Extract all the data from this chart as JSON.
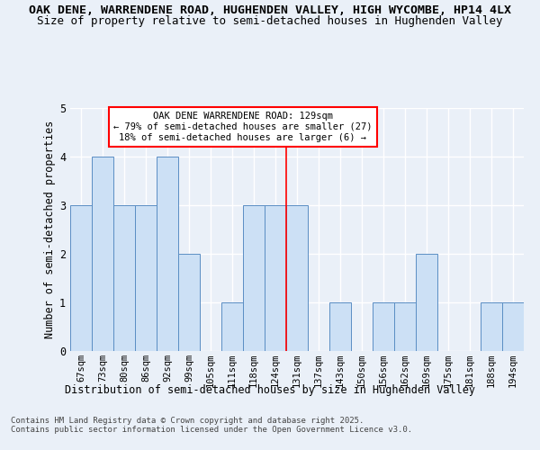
{
  "title_line1": "OAK DENE, WARRENDENE ROAD, HUGHENDEN VALLEY, HIGH WYCOMBE, HP14 4LX",
  "title_line2": "Size of property relative to semi-detached houses in Hughenden Valley",
  "xlabel": "Distribution of semi-detached houses by size in Hughenden Valley",
  "ylabel": "Number of semi-detached properties",
  "footnote": "Contains HM Land Registry data © Crown copyright and database right 2025.\nContains public sector information licensed under the Open Government Licence v3.0.",
  "categories": [
    "67sqm",
    "73sqm",
    "80sqm",
    "86sqm",
    "92sqm",
    "99sqm",
    "105sqm",
    "111sqm",
    "118sqm",
    "124sqm",
    "131sqm",
    "137sqm",
    "143sqm",
    "150sqm",
    "156sqm",
    "162sqm",
    "169sqm",
    "175sqm",
    "181sqm",
    "188sqm",
    "194sqm"
  ],
  "values": [
    3,
    4,
    3,
    3,
    4,
    2,
    0,
    1,
    3,
    3,
    3,
    0,
    1,
    0,
    1,
    1,
    2,
    0,
    0,
    1,
    1
  ],
  "bar_color": "#cce0f5",
  "bar_edge_color": "#5b8ec4",
  "vline_color": "red",
  "vline_index": 10,
  "annotation_title": "OAK DENE WARRENDENE ROAD: 129sqm",
  "annotation_line2": "← 79% of semi-detached houses are smaller (27)",
  "annotation_line3": "18% of semi-detached houses are larger (6) →",
  "ylim": [
    0,
    5
  ],
  "yticks": [
    0,
    1,
    2,
    3,
    4,
    5
  ],
  "background_color": "#eaf0f8",
  "plot_background": "#eaf0f8",
  "grid_color": "#ffffff",
  "title_fontsize": 9.5,
  "subtitle_fontsize": 9,
  "tick_fontsize": 7.5,
  "ylabel_fontsize": 8.5,
  "xlabel_fontsize": 8.5,
  "footnote_fontsize": 6.5
}
